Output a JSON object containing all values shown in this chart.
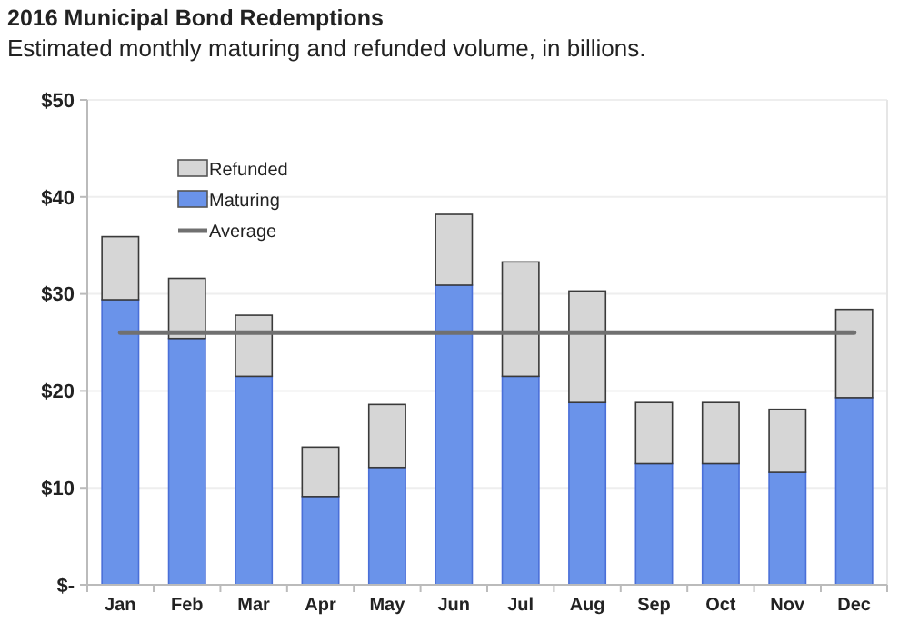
{
  "chart_data": {
    "type": "bar",
    "title": "2016 Municipal Bond Redemptions",
    "subtitle": "Estimated monthly maturing and refunded volume, in billions.",
    "categories": [
      "Jan",
      "Feb",
      "Mar",
      "Apr",
      "May",
      "Jun",
      "Jul",
      "Aug",
      "Sep",
      "Oct",
      "Nov",
      "Dec"
    ],
    "stacked": true,
    "series": [
      {
        "name": "Maturing",
        "color": "#6a93ea",
        "values": [
          29.4,
          25.4,
          21.5,
          9.1,
          12.1,
          30.9,
          21.5,
          18.8,
          12.5,
          12.5,
          11.6,
          19.3
        ]
      },
      {
        "name": "Refunded",
        "color": "#d6d6d6",
        "values": [
          6.5,
          6.2,
          6.3,
          5.1,
          6.5,
          7.3,
          11.8,
          11.5,
          6.3,
          6.3,
          6.5,
          9.1
        ]
      }
    ],
    "ref_lines": [
      {
        "axis": "y",
        "value": 26,
        "label": "Average",
        "color": "#707070"
      }
    ],
    "ylim": [
      0,
      50
    ],
    "yticks": [
      {
        "value": 0,
        "label": "$-"
      },
      {
        "value": 10,
        "label": "$10"
      },
      {
        "value": 20,
        "label": "$20"
      },
      {
        "value": 30,
        "label": "$30"
      },
      {
        "value": 40,
        "label": "$40"
      },
      {
        "value": 50,
        "label": "$50"
      }
    ],
    "grid": "y",
    "legend": "top left"
  }
}
